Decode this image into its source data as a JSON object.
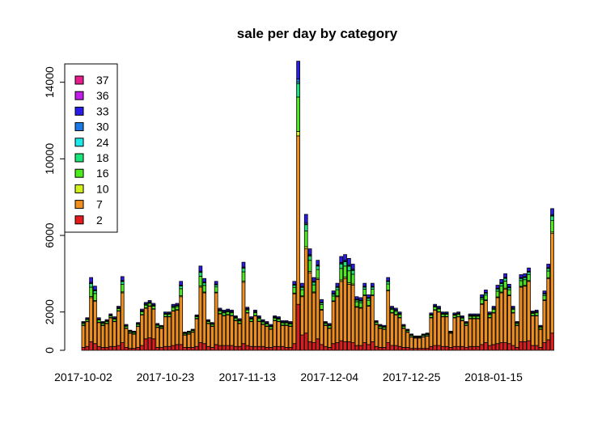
{
  "chart_data": {
    "type": "bar",
    "stacked": true,
    "title": "sale per day by category",
    "xlabel": "",
    "ylabel": "",
    "ylim": [
      0,
      15000
    ],
    "yticks": [
      0,
      2000,
      6000,
      10000,
      14000
    ],
    "x_tick_labels": [
      "2017-10-02",
      "2017-10-23",
      "2017-11-13",
      "2017-12-04",
      "2017-12-25",
      "2018-01-15"
    ],
    "x_tick_positions": [
      0,
      21,
      42,
      63,
      84,
      105
    ],
    "legend_position": "top-left",
    "categories_per_day_start": "2017-10-02",
    "series": [
      {
        "name": "2",
        "color": "#E41A1C"
      },
      {
        "name": "7",
        "color": "#F28E1C"
      },
      {
        "name": "10",
        "color": "#D4F01C"
      },
      {
        "name": "16",
        "color": "#4CEB1C"
      },
      {
        "name": "18",
        "color": "#18E67A"
      },
      {
        "name": "24",
        "color": "#1CE8E8"
      },
      {
        "name": "30",
        "color": "#1C7AE8"
      },
      {
        "name": "33",
        "color": "#2A1CE8"
      },
      {
        "name": "36",
        "color": "#C21CE8"
      },
      {
        "name": "37",
        "color": "#E81C8C"
      }
    ],
    "totals": [
      1500,
      1700,
      3800,
      3350,
      1700,
      1500,
      1600,
      1900,
      1750,
      2300,
      3850,
      1350,
      1050,
      1000,
      1450,
      2150,
      2500,
      2600,
      2450,
      1400,
      1300,
      2000,
      2000,
      2400,
      2450,
      3600,
      950,
      1000,
      1100,
      1850,
      4400,
      3750,
      1600,
      1450,
      3600,
      2200,
      2100,
      2150,
      2100,
      1800,
      1650,
      4600,
      2250,
      1750,
      2100,
      1800,
      1600,
      1500,
      1350,
      1800,
      1750,
      1550,
      1550,
      1500,
      3600,
      15100,
      3500,
      7100,
      5300,
      3800,
      4700,
      2650,
      1500,
      1400,
      3100,
      3500,
      4900,
      5000,
      4800,
      4500,
      2800,
      2750,
      3500,
      2900,
      3500,
      1550,
      1350,
      1300,
      3800,
      2300,
      2200,
      2000,
      1350,
      1100,
      850,
      750,
      750,
      850,
      900,
      1950,
      2400,
      2300,
      2000,
      2000,
      1000,
      1950,
      2000,
      1800,
      1500,
      1900,
      1900,
      1900,
      2900,
      3150,
      2000,
      2300,
      3400,
      3700,
      4000,
      3450,
      2300,
      1500,
      3950,
      4000,
      4300,
      2050,
      2100,
      1300,
      3100,
      4500,
      7400
    ],
    "red_values": [
      150,
      200,
      450,
      350,
      200,
      150,
      150,
      200,
      200,
      250,
      400,
      150,
      100,
      100,
      150,
      250,
      600,
      650,
      600,
      150,
      150,
      200,
      200,
      250,
      300,
      300,
      150,
      150,
      150,
      200,
      400,
      350,
      200,
      150,
      300,
      250,
      250,
      250,
      250,
      200,
      200,
      350,
      250,
      200,
      200,
      200,
      200,
      150,
      150,
      200,
      200,
      200,
      150,
      150,
      350,
      2400,
      800,
      900,
      450,
      400,
      600,
      300,
      200,
      150,
      350,
      400,
      500,
      450,
      450,
      400,
      250,
      250,
      400,
      300,
      450,
      200,
      150,
      150,
      400,
      250,
      250,
      200,
      150,
      150,
      100,
      100,
      100,
      100,
      100,
      200,
      250,
      250,
      200,
      200,
      150,
      200,
      200,
      200,
      150,
      200,
      200,
      200,
      300,
      400,
      250,
      300,
      350,
      400,
      400,
      350,
      250,
      150,
      450,
      450,
      500,
      250,
      250,
      150,
      400,
      550,
      900
    ],
    "orange_values": [
      1150,
      1300,
      2300,
      2200,
      1250,
      1150,
      1250,
      1500,
      1300,
      1800,
      2600,
      1000,
      800,
      750,
      1100,
      1600,
      1600,
      1650,
      1550,
      1050,
      1000,
      1550,
      1550,
      1800,
      1800,
      2500,
      650,
      700,
      800,
      1450,
      2900,
      2650,
      1200,
      1100,
      2700,
      1650,
      1550,
      1600,
      1550,
      1350,
      1200,
      3200,
      1700,
      1300,
      1600,
      1300,
      1150,
      1100,
      950,
      1350,
      1300,
      1100,
      1150,
      1100,
      2600,
      8800,
      2000,
      4400,
      3600,
      2600,
      3100,
      1800,
      1100,
      1000,
      2200,
      2400,
      3100,
      3300,
      3000,
      3000,
      2000,
      1950,
      2450,
      2000,
      2400,
      1150,
      1000,
      950,
      2700,
      1700,
      1600,
      1500,
      1000,
      800,
      600,
      550,
      550,
      600,
      650,
      1500,
      1850,
      1750,
      1550,
      1550,
      750,
      1500,
      1550,
      1350,
      1150,
      1450,
      1450,
      1450,
      2100,
      2200,
      1450,
      1650,
      2400,
      2600,
      2800,
      2500,
      1700,
      1150,
      2850,
      2900,
      3100,
      1550,
      1550,
      950,
      2200,
      3200,
      5200
    ]
  }
}
